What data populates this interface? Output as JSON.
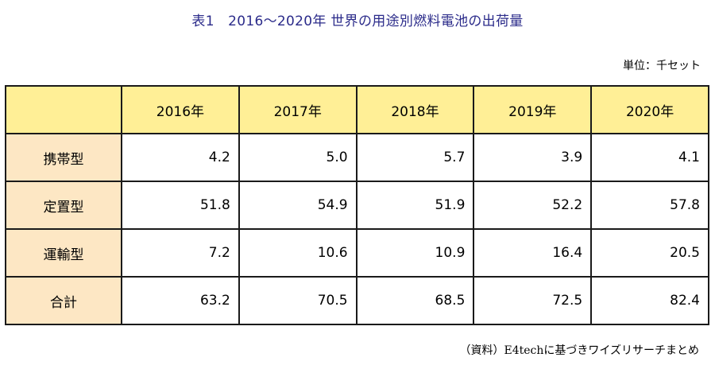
{
  "title": "表1　2016〜2020年 世界の用途別燃料電池の出荷量",
  "unit": "単位：千セット",
  "columns": [
    "2016年",
    "2017年",
    "2018年",
    "2019年",
    "2020年"
  ],
  "rows": [
    {
      "label": "携帯型",
      "values": [
        "4.2",
        "5.0",
        "5.7",
        "3.9",
        "4.1"
      ]
    },
    {
      "label": "定置型",
      "values": [
        "51.8",
        "54.9",
        "51.9",
        "52.2",
        "57.8"
      ]
    },
    {
      "label": "運輸型",
      "values": [
        "7.2",
        "10.6",
        "10.9",
        "16.4",
        "20.5"
      ]
    },
    {
      "label": "合計",
      "values": [
        "63.2",
        "70.5",
        "68.5",
        "72.5",
        "82.4"
      ]
    }
  ],
  "source": "（資料）E4techに基づきワイズリサーチまとめ",
  "colors": {
    "title": "#2b2b8a",
    "header_bg": "#ffef96",
    "row_header_bg": "#fde7c4",
    "border": "#1a1a1a"
  }
}
